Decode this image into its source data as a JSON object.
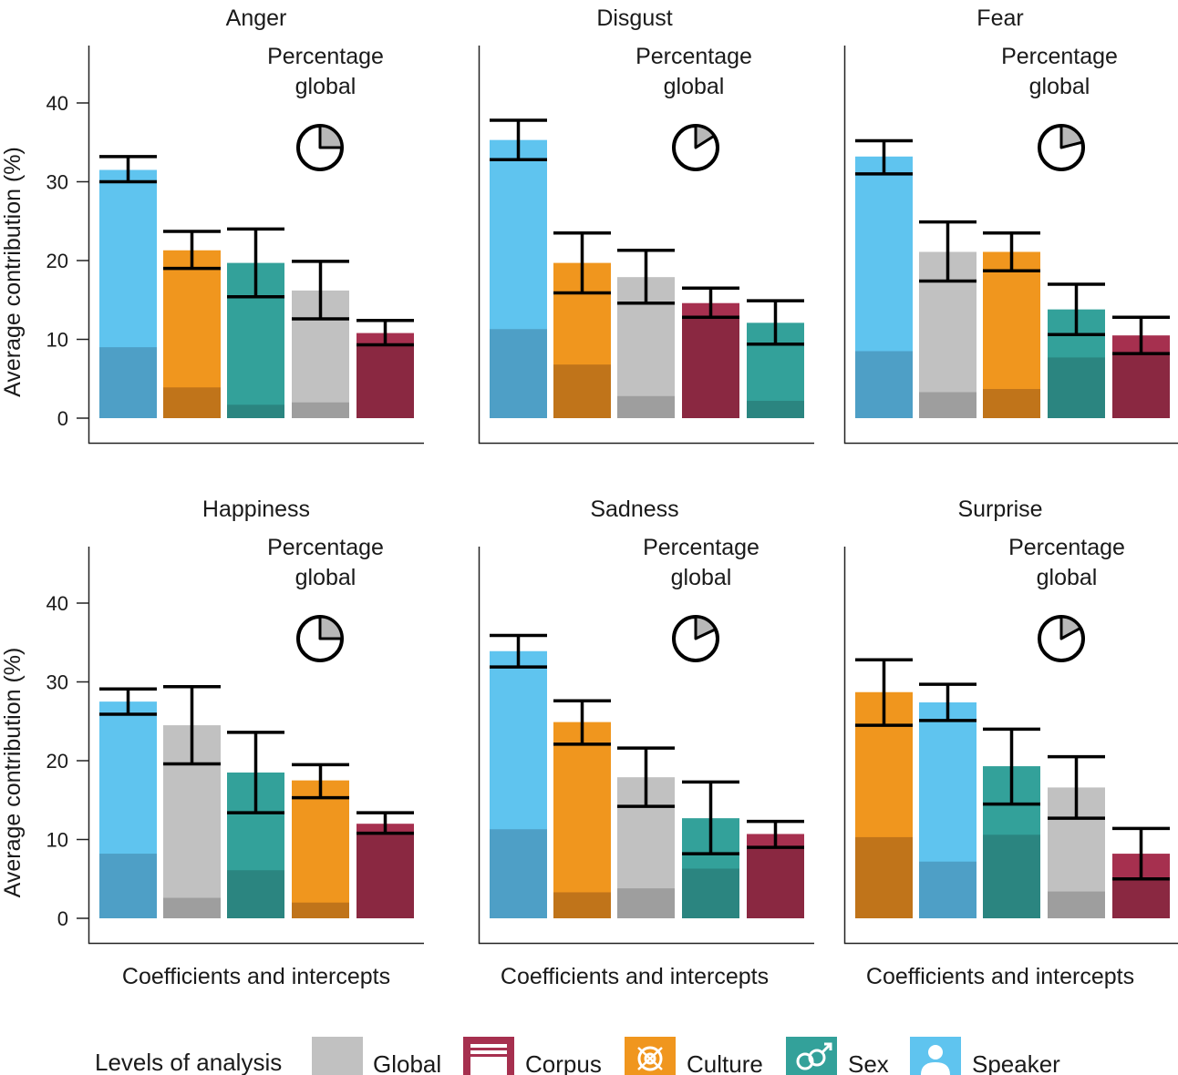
{
  "figure": {
    "ylabel": "Average contribution (%)",
    "xlabel": "Coefficients and intercepts",
    "inset_label_line1": "Percentage",
    "inset_label_line2": "global",
    "yticks": [
      0,
      10,
      20,
      30,
      40
    ],
    "ylim": [
      0,
      45
    ]
  },
  "colors": {
    "Global": {
      "main": "#c1c1c1",
      "dark": "#9e9e9e"
    },
    "Corpus": {
      "main": "#a6304f",
      "dark": "#8a2841"
    },
    "Culture": {
      "main": "#f0961e",
      "dark": "#c0741a"
    },
    "Sex": {
      "main": "#33a19a",
      "dark": "#2b8580"
    },
    "Speaker": {
      "main": "#5fc4ef",
      "dark": "#4e9fc6"
    }
  },
  "legend": {
    "title": "Levels of analysis",
    "items": [
      {
        "label": "Global",
        "icon": "global-swatch"
      },
      {
        "label": "Corpus",
        "icon": "corpus-book-icon"
      },
      {
        "label": "Culture",
        "icon": "culture-knot-icon"
      },
      {
        "label": "Sex",
        "icon": "sex-symbol-icon"
      },
      {
        "label": "Speaker",
        "icon": "speaker-person-icon"
      }
    ]
  },
  "chart_data": [
    {
      "type": "bar",
      "title": "Anger",
      "xlabel": "",
      "ylabel": "Average contribution (%)",
      "ylim": [
        0,
        45
      ],
      "pie_global_fraction": 0.25,
      "bars": [
        {
          "level": "Speaker",
          "total": 31.5,
          "intercept": 9.0,
          "err_low": 30.0,
          "err_high": 33.2
        },
        {
          "level": "Culture",
          "total": 21.3,
          "intercept": 3.9,
          "err_low": 19.0,
          "err_high": 23.7
        },
        {
          "level": "Sex",
          "total": 19.7,
          "intercept": 1.7,
          "err_low": 15.4,
          "err_high": 24.0
        },
        {
          "level": "Global",
          "total": 16.2,
          "intercept": 2.0,
          "err_low": 12.6,
          "err_high": 19.9
        },
        {
          "level": "Corpus",
          "total": 10.8,
          "intercept": 9.5,
          "err_low": 9.3,
          "err_high": 12.4
        }
      ]
    },
    {
      "type": "bar",
      "title": "Disgust",
      "xlabel": "",
      "ylabel": "",
      "ylim": [
        0,
        45
      ],
      "pie_global_fraction": 0.16,
      "bars": [
        {
          "level": "Speaker",
          "total": 35.3,
          "intercept": 11.3,
          "err_low": 32.8,
          "err_high": 37.8
        },
        {
          "level": "Culture",
          "total": 19.7,
          "intercept": 6.8,
          "err_low": 15.9,
          "err_high": 23.5
        },
        {
          "level": "Global",
          "total": 17.9,
          "intercept": 2.8,
          "err_low": 14.6,
          "err_high": 21.3
        },
        {
          "level": "Corpus",
          "total": 14.6,
          "intercept": 12.8,
          "err_low": 12.8,
          "err_high": 16.5
        },
        {
          "level": "Sex",
          "total": 12.1,
          "intercept": 2.2,
          "err_low": 9.4,
          "err_high": 14.9
        }
      ]
    },
    {
      "type": "bar",
      "title": "Fear",
      "xlabel": "",
      "ylabel": "",
      "ylim": [
        0,
        45
      ],
      "pie_global_fraction": 0.21,
      "bars": [
        {
          "level": "Speaker",
          "total": 33.2,
          "intercept": 8.5,
          "err_low": 31.0,
          "err_high": 35.2
        },
        {
          "level": "Global",
          "total": 21.1,
          "intercept": 3.3,
          "err_low": 17.4,
          "err_high": 24.9
        },
        {
          "level": "Culture",
          "total": 21.1,
          "intercept": 3.7,
          "err_low": 18.7,
          "err_high": 23.5
        },
        {
          "level": "Sex",
          "total": 13.8,
          "intercept": 7.7,
          "err_low": 10.6,
          "err_high": 17.0
        },
        {
          "level": "Corpus",
          "total": 10.5,
          "intercept": 8.2,
          "err_low": 8.2,
          "err_high": 12.8
        }
      ]
    },
    {
      "type": "bar",
      "title": "Happiness",
      "xlabel": "Coefficients and intercepts",
      "ylabel": "Average contribution (%)",
      "ylim": [
        0,
        45
      ],
      "pie_global_fraction": 0.25,
      "bars": [
        {
          "level": "Speaker",
          "total": 27.5,
          "intercept": 8.2,
          "err_low": 25.9,
          "err_high": 29.1
        },
        {
          "level": "Global",
          "total": 24.5,
          "intercept": 2.6,
          "err_low": 19.6,
          "err_high": 29.4
        },
        {
          "level": "Sex",
          "total": 18.5,
          "intercept": 6.1,
          "err_low": 13.4,
          "err_high": 23.6
        },
        {
          "level": "Culture",
          "total": 17.5,
          "intercept": 2.0,
          "err_low": 15.3,
          "err_high": 19.5
        },
        {
          "level": "Corpus",
          "total": 12.0,
          "intercept": 10.8,
          "err_low": 10.8,
          "err_high": 13.4
        }
      ]
    },
    {
      "type": "bar",
      "title": "Sadness",
      "xlabel": "Coefficients and intercepts",
      "ylabel": "",
      "ylim": [
        0,
        45
      ],
      "pie_global_fraction": 0.18,
      "bars": [
        {
          "level": "Speaker",
          "total": 33.9,
          "intercept": 11.3,
          "err_low": 31.9,
          "err_high": 35.9
        },
        {
          "level": "Culture",
          "total": 24.9,
          "intercept": 3.3,
          "err_low": 22.1,
          "err_high": 27.6
        },
        {
          "level": "Global",
          "total": 17.9,
          "intercept": 3.8,
          "err_low": 14.2,
          "err_high": 21.6
        },
        {
          "level": "Sex",
          "total": 12.7,
          "intercept": 6.3,
          "err_low": 8.2,
          "err_high": 17.3
        },
        {
          "level": "Corpus",
          "total": 10.7,
          "intercept": 9.0,
          "err_low": 9.0,
          "err_high": 12.3
        }
      ]
    },
    {
      "type": "bar",
      "title": "Surprise",
      "xlabel": "Coefficients and intercepts",
      "ylabel": "",
      "ylim": [
        0,
        45
      ],
      "pie_global_fraction": 0.17,
      "bars": [
        {
          "level": "Culture",
          "total": 28.7,
          "intercept": 10.3,
          "err_low": 24.5,
          "err_high": 32.8
        },
        {
          "level": "Speaker",
          "total": 27.4,
          "intercept": 7.2,
          "err_low": 25.1,
          "err_high": 29.7
        },
        {
          "level": "Sex",
          "total": 19.3,
          "intercept": 10.6,
          "err_low": 14.5,
          "err_high": 24.0
        },
        {
          "level": "Global",
          "total": 16.6,
          "intercept": 3.4,
          "err_low": 12.7,
          "err_high": 20.5
        },
        {
          "level": "Corpus",
          "total": 8.2,
          "intercept": 5.0,
          "err_low": 5.0,
          "err_high": 11.4
        }
      ]
    }
  ]
}
